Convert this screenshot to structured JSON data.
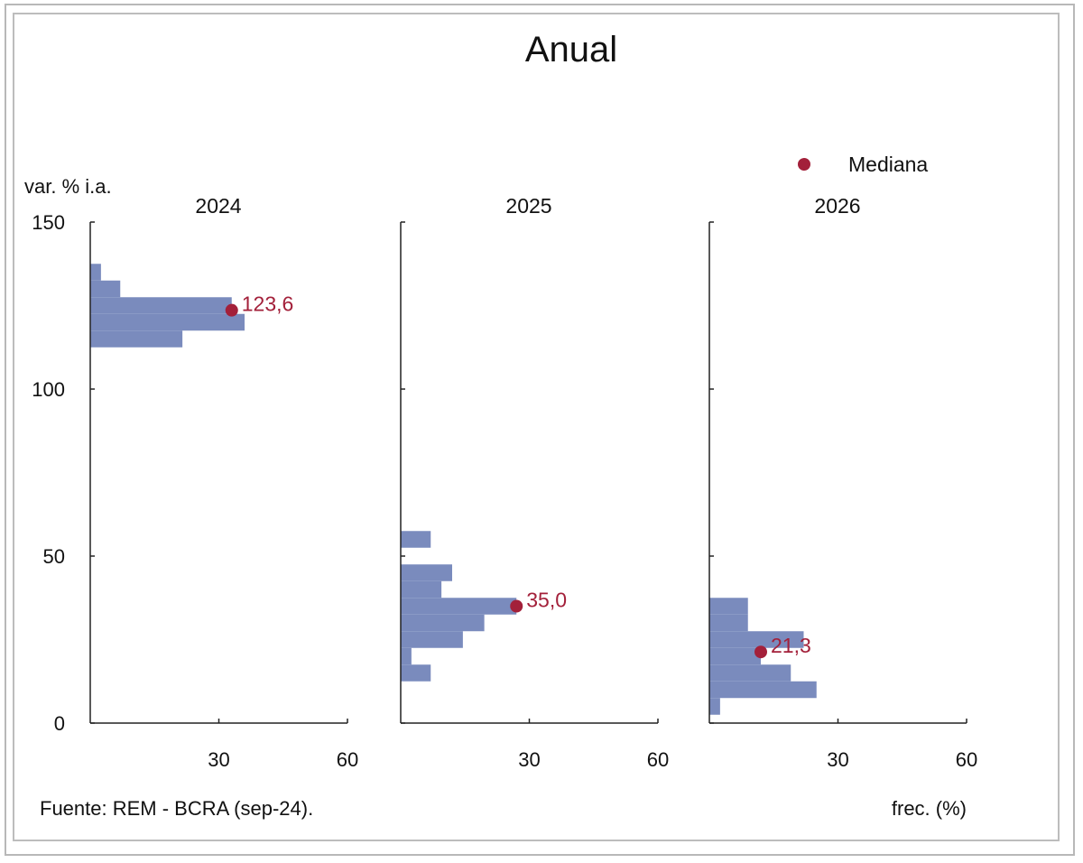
{
  "chart_data": {
    "type": "bar",
    "orientation": "horizontal-histogram",
    "title": "Anual",
    "ylabel": "var. % i.a.",
    "xlabel": "frec. (%)",
    "source": "Fuente: REM - BCRA (sep-24).",
    "legend": {
      "label": "Mediana",
      "placement": "top-right"
    },
    "ylim": [
      0,
      150
    ],
    "yticks": [
      "0",
      "50",
      "100",
      "150"
    ],
    "xlim": [
      0,
      60
    ],
    "xticks": [
      "30",
      "60"
    ],
    "panels": [
      {
        "name": "2024",
        "median": 123.6,
        "median_label": "123,6",
        "bins": [
          {
            "lo": 112.5,
            "hi": 117.5,
            "freq": 21.5
          },
          {
            "lo": 117.5,
            "hi": 122.5,
            "freq": 36.0
          },
          {
            "lo": 122.5,
            "hi": 127.5,
            "freq": 33.0
          },
          {
            "lo": 127.5,
            "hi": 132.5,
            "freq": 7.0
          },
          {
            "lo": 132.5,
            "hi": 137.5,
            "freq": 2.5
          }
        ]
      },
      {
        "name": "2025",
        "median": 35.0,
        "median_label": "35,0",
        "bins": [
          {
            "lo": 12.5,
            "hi": 17.5,
            "freq": 7.0
          },
          {
            "lo": 17.5,
            "hi": 22.5,
            "freq": 2.5
          },
          {
            "lo": 22.5,
            "hi": 27.5,
            "freq": 14.5
          },
          {
            "lo": 27.5,
            "hi": 32.5,
            "freq": 19.5
          },
          {
            "lo": 32.5,
            "hi": 37.5,
            "freq": 27.0
          },
          {
            "lo": 37.5,
            "hi": 42.5,
            "freq": 9.5
          },
          {
            "lo": 42.5,
            "hi": 47.5,
            "freq": 12.0
          },
          {
            "lo": 52.5,
            "hi": 57.5,
            "freq": 7.0
          }
        ]
      },
      {
        "name": "2026",
        "median": 21.3,
        "median_label": "21,3",
        "bins": [
          {
            "lo": 2.5,
            "hi": 7.5,
            "freq": 2.5
          },
          {
            "lo": 7.5,
            "hi": 12.5,
            "freq": 25.0
          },
          {
            "lo": 12.5,
            "hi": 17.5,
            "freq": 19.0
          },
          {
            "lo": 17.5,
            "hi": 22.5,
            "freq": 12.0
          },
          {
            "lo": 22.5,
            "hi": 27.5,
            "freq": 22.0
          },
          {
            "lo": 27.5,
            "hi": 32.5,
            "freq": 9.0
          },
          {
            "lo": 32.5,
            "hi": 37.5,
            "freq": 9.0
          }
        ]
      }
    ],
    "colors": {
      "bar": "#7a8bbd",
      "median": "#a3203a",
      "axis": "#222222"
    }
  }
}
